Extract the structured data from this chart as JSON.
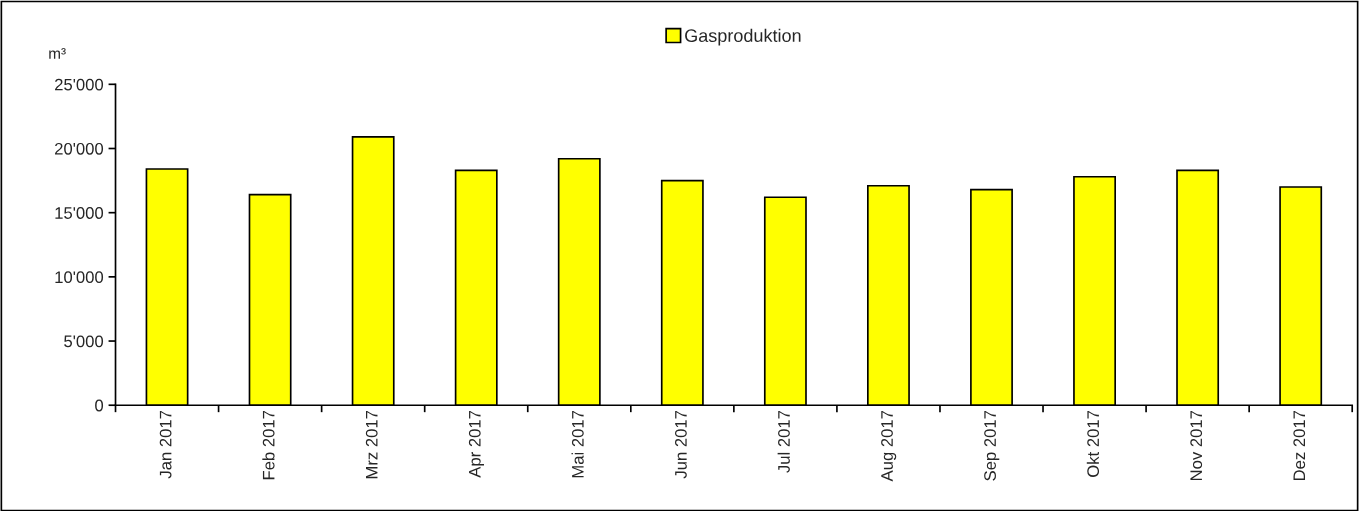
{
  "chart_data": {
    "type": "bar",
    "ylabel": "m³",
    "categories": [
      "Jan 2017",
      "Feb 2017",
      "Mrz 2017",
      "Apr 2017",
      "Mai 2017",
      "Jun 2017",
      "Jul 2017",
      "Aug 2017",
      "Sep 2017",
      "Okt 2017",
      "Nov 2017",
      "Dez 2017"
    ],
    "series": [
      {
        "name": "Gasproduktion",
        "color": "#ffff00",
        "values": [
          18400,
          16400,
          20900,
          18300,
          19200,
          17500,
          16200,
          17100,
          16800,
          17800,
          18300,
          17000
        ]
      }
    ],
    "ylim": [
      0,
      25000
    ],
    "yticks": [
      {
        "value": 0,
        "label": "0"
      },
      {
        "value": 5000,
        "label": "5'000"
      },
      {
        "value": 10000,
        "label": "10'000"
      },
      {
        "value": 15000,
        "label": "15'000"
      },
      {
        "value": 20000,
        "label": "20'000"
      },
      {
        "value": 25000,
        "label": "25'000"
      }
    ],
    "grid": false,
    "legend": "top"
  }
}
